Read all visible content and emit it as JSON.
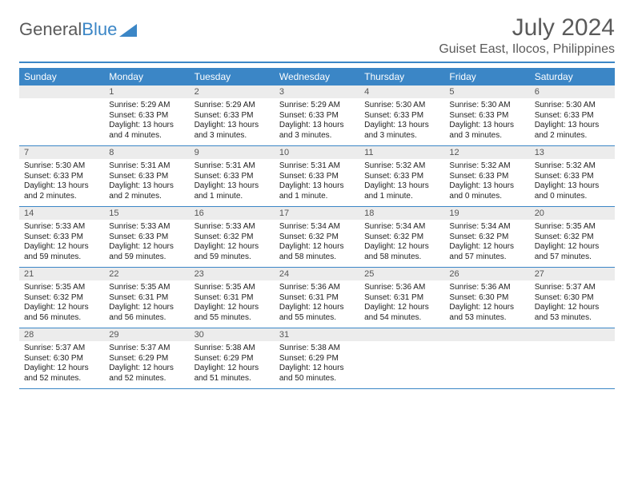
{
  "logo": {
    "text1": "General",
    "text2": "Blue"
  },
  "title": "July 2024",
  "location": "Guiset East, Ilocos, Philippines",
  "colors": {
    "accent": "#3b86c6",
    "header_text": "#ffffff",
    "daynum_bg": "#ececec",
    "body_text": "#222222",
    "muted_text": "#5a5a5a"
  },
  "dayHeaders": [
    "Sunday",
    "Monday",
    "Tuesday",
    "Wednesday",
    "Thursday",
    "Friday",
    "Saturday"
  ],
  "weeks": [
    [
      {
        "n": "",
        "lines": []
      },
      {
        "n": "1",
        "lines": [
          "Sunrise: 5:29 AM",
          "Sunset: 6:33 PM",
          "Daylight: 13 hours and 4 minutes."
        ]
      },
      {
        "n": "2",
        "lines": [
          "Sunrise: 5:29 AM",
          "Sunset: 6:33 PM",
          "Daylight: 13 hours and 3 minutes."
        ]
      },
      {
        "n": "3",
        "lines": [
          "Sunrise: 5:29 AM",
          "Sunset: 6:33 PM",
          "Daylight: 13 hours and 3 minutes."
        ]
      },
      {
        "n": "4",
        "lines": [
          "Sunrise: 5:30 AM",
          "Sunset: 6:33 PM",
          "Daylight: 13 hours and 3 minutes."
        ]
      },
      {
        "n": "5",
        "lines": [
          "Sunrise: 5:30 AM",
          "Sunset: 6:33 PM",
          "Daylight: 13 hours and 3 minutes."
        ]
      },
      {
        "n": "6",
        "lines": [
          "Sunrise: 5:30 AM",
          "Sunset: 6:33 PM",
          "Daylight: 13 hours and 2 minutes."
        ]
      }
    ],
    [
      {
        "n": "7",
        "lines": [
          "Sunrise: 5:30 AM",
          "Sunset: 6:33 PM",
          "Daylight: 13 hours and 2 minutes."
        ]
      },
      {
        "n": "8",
        "lines": [
          "Sunrise: 5:31 AM",
          "Sunset: 6:33 PM",
          "Daylight: 13 hours and 2 minutes."
        ]
      },
      {
        "n": "9",
        "lines": [
          "Sunrise: 5:31 AM",
          "Sunset: 6:33 PM",
          "Daylight: 13 hours and 1 minute."
        ]
      },
      {
        "n": "10",
        "lines": [
          "Sunrise: 5:31 AM",
          "Sunset: 6:33 PM",
          "Daylight: 13 hours and 1 minute."
        ]
      },
      {
        "n": "11",
        "lines": [
          "Sunrise: 5:32 AM",
          "Sunset: 6:33 PM",
          "Daylight: 13 hours and 1 minute."
        ]
      },
      {
        "n": "12",
        "lines": [
          "Sunrise: 5:32 AM",
          "Sunset: 6:33 PM",
          "Daylight: 13 hours and 0 minutes."
        ]
      },
      {
        "n": "13",
        "lines": [
          "Sunrise: 5:32 AM",
          "Sunset: 6:33 PM",
          "Daylight: 13 hours and 0 minutes."
        ]
      }
    ],
    [
      {
        "n": "14",
        "lines": [
          "Sunrise: 5:33 AM",
          "Sunset: 6:33 PM",
          "Daylight: 12 hours and 59 minutes."
        ]
      },
      {
        "n": "15",
        "lines": [
          "Sunrise: 5:33 AM",
          "Sunset: 6:33 PM",
          "Daylight: 12 hours and 59 minutes."
        ]
      },
      {
        "n": "16",
        "lines": [
          "Sunrise: 5:33 AM",
          "Sunset: 6:32 PM",
          "Daylight: 12 hours and 59 minutes."
        ]
      },
      {
        "n": "17",
        "lines": [
          "Sunrise: 5:34 AM",
          "Sunset: 6:32 PM",
          "Daylight: 12 hours and 58 minutes."
        ]
      },
      {
        "n": "18",
        "lines": [
          "Sunrise: 5:34 AM",
          "Sunset: 6:32 PM",
          "Daylight: 12 hours and 58 minutes."
        ]
      },
      {
        "n": "19",
        "lines": [
          "Sunrise: 5:34 AM",
          "Sunset: 6:32 PM",
          "Daylight: 12 hours and 57 minutes."
        ]
      },
      {
        "n": "20",
        "lines": [
          "Sunrise: 5:35 AM",
          "Sunset: 6:32 PM",
          "Daylight: 12 hours and 57 minutes."
        ]
      }
    ],
    [
      {
        "n": "21",
        "lines": [
          "Sunrise: 5:35 AM",
          "Sunset: 6:32 PM",
          "Daylight: 12 hours and 56 minutes."
        ]
      },
      {
        "n": "22",
        "lines": [
          "Sunrise: 5:35 AM",
          "Sunset: 6:31 PM",
          "Daylight: 12 hours and 56 minutes."
        ]
      },
      {
        "n": "23",
        "lines": [
          "Sunrise: 5:35 AM",
          "Sunset: 6:31 PM",
          "Daylight: 12 hours and 55 minutes."
        ]
      },
      {
        "n": "24",
        "lines": [
          "Sunrise: 5:36 AM",
          "Sunset: 6:31 PM",
          "Daylight: 12 hours and 55 minutes."
        ]
      },
      {
        "n": "25",
        "lines": [
          "Sunrise: 5:36 AM",
          "Sunset: 6:31 PM",
          "Daylight: 12 hours and 54 minutes."
        ]
      },
      {
        "n": "26",
        "lines": [
          "Sunrise: 5:36 AM",
          "Sunset: 6:30 PM",
          "Daylight: 12 hours and 53 minutes."
        ]
      },
      {
        "n": "27",
        "lines": [
          "Sunrise: 5:37 AM",
          "Sunset: 6:30 PM",
          "Daylight: 12 hours and 53 minutes."
        ]
      }
    ],
    [
      {
        "n": "28",
        "lines": [
          "Sunrise: 5:37 AM",
          "Sunset: 6:30 PM",
          "Daylight: 12 hours and 52 minutes."
        ]
      },
      {
        "n": "29",
        "lines": [
          "Sunrise: 5:37 AM",
          "Sunset: 6:29 PM",
          "Daylight: 12 hours and 52 minutes."
        ]
      },
      {
        "n": "30",
        "lines": [
          "Sunrise: 5:38 AM",
          "Sunset: 6:29 PM",
          "Daylight: 12 hours and 51 minutes."
        ]
      },
      {
        "n": "31",
        "lines": [
          "Sunrise: 5:38 AM",
          "Sunset: 6:29 PM",
          "Daylight: 12 hours and 50 minutes."
        ]
      },
      {
        "n": "",
        "lines": []
      },
      {
        "n": "",
        "lines": []
      },
      {
        "n": "",
        "lines": []
      }
    ]
  ]
}
